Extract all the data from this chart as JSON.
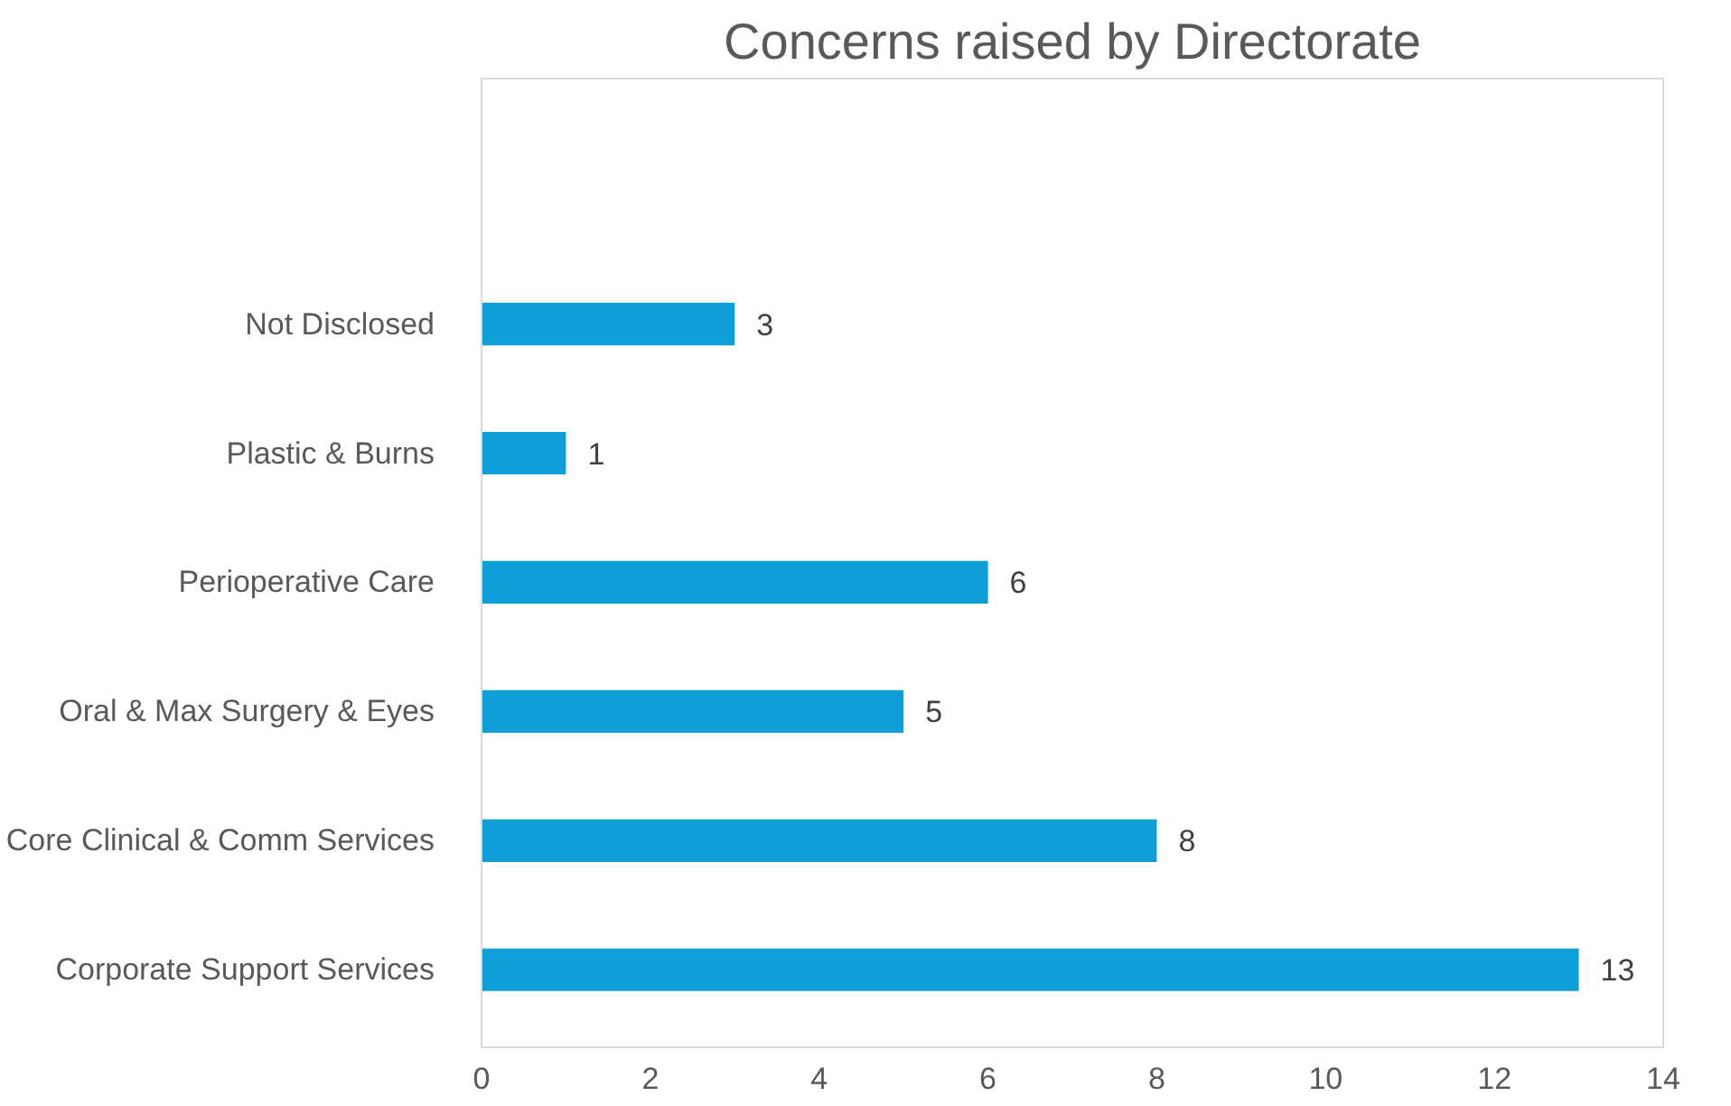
{
  "chart_data": {
    "type": "bar",
    "orientation": "horizontal",
    "title": "Concerns raised by Directorate",
    "categories": [
      "Not Disclosed",
      "Plastic & Burns",
      "Perioperative Care",
      "Oral & Max Surgery & Eyes",
      "Core Clinical & Comm Services",
      "Corporate Support Services"
    ],
    "values": [
      3,
      1,
      6,
      5,
      8,
      13
    ],
    "color": "#0e9fd8",
    "xlim": [
      0,
      14
    ],
    "xticks": [
      0,
      2,
      4,
      6,
      8,
      10,
      12,
      14
    ],
    "grid": false,
    "data_labels": true
  }
}
